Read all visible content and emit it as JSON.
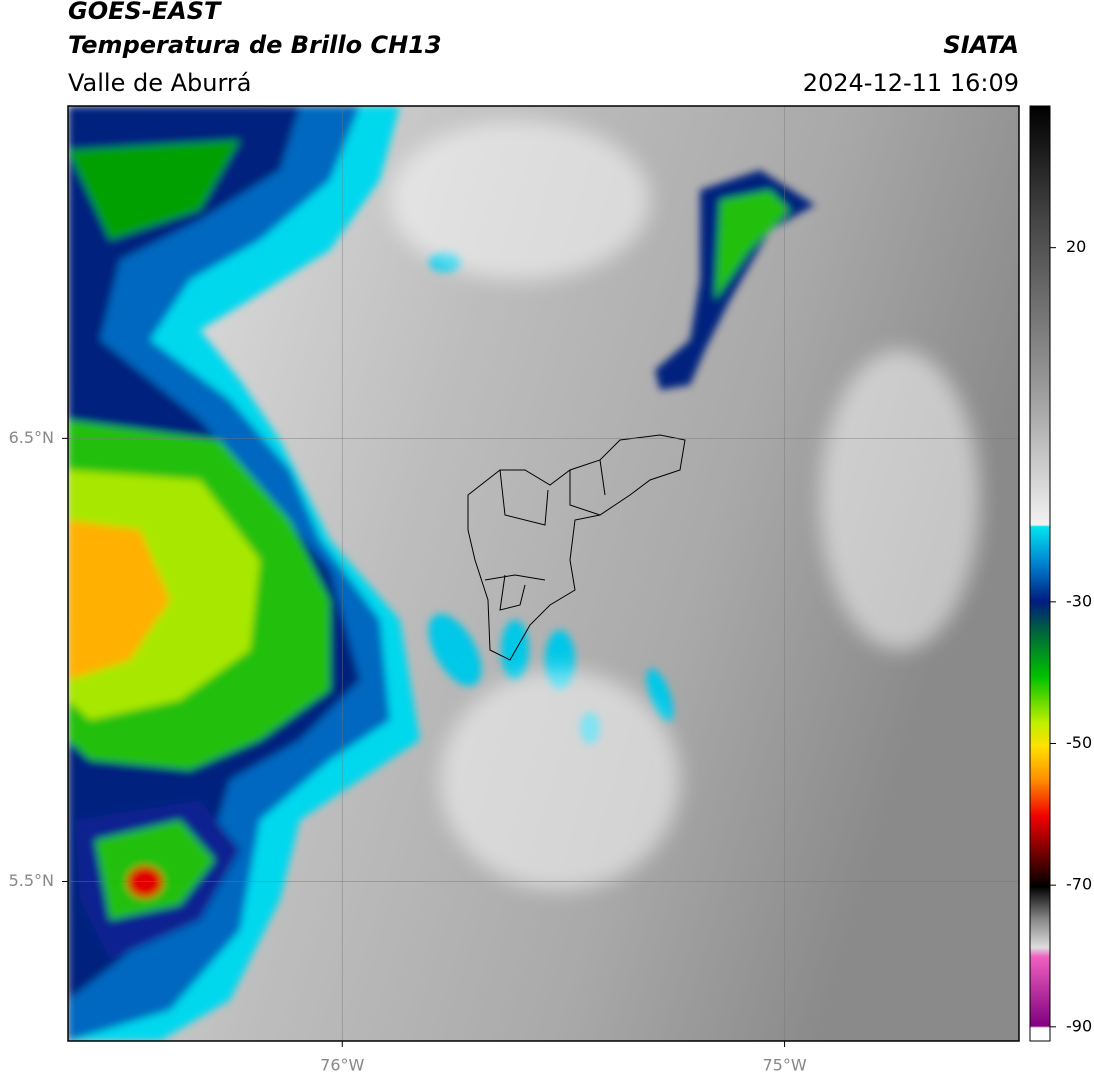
{
  "header": {
    "title": "GOES-EAST",
    "subtitle": "Temperatura de Brillo CH13",
    "region": "Valle de Aburrá",
    "source": "SIATA",
    "datetime": "2024-12-11 16:09"
  },
  "map": {
    "xlim": [
      -76.62,
      -74.47
    ],
    "ylim": [
      5.14,
      7.25
    ],
    "xticks": [
      {
        "value": -76,
        "label": "76°W"
      },
      {
        "value": -75,
        "label": "75°W"
      }
    ],
    "yticks": [
      {
        "value": 6.5,
        "label": "6.5°N"
      },
      {
        "value": 5.5,
        "label": "5.5°N"
      }
    ]
  },
  "colorbar": {
    "lim": [
      -92,
      40
    ],
    "ticks": [
      20,
      -30,
      -50,
      -70,
      -90
    ]
  }
}
